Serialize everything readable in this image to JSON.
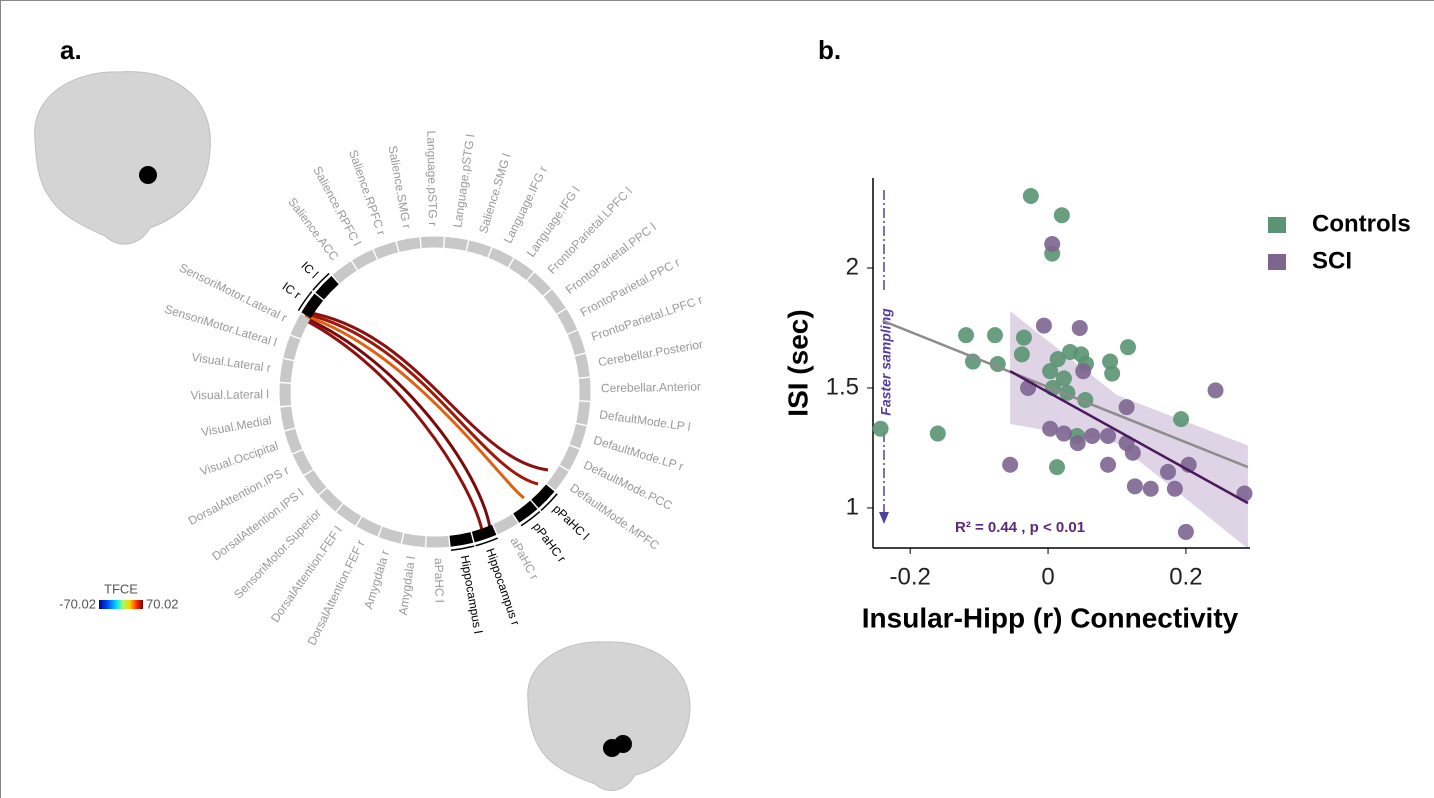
{
  "connectome": {
    "label": "a.",
    "nodes": [
      {
        "label": "Salience.SMG r",
        "highlight": false
      },
      {
        "label": "Language.pSTG r",
        "highlight": false
      },
      {
        "label": "Language.pSTG l",
        "highlight": false
      },
      {
        "label": "Salience.SMG l",
        "highlight": false
      },
      {
        "label": "Language.IFG r",
        "highlight": false
      },
      {
        "label": "Language.IFG l",
        "highlight": false
      },
      {
        "label": "FrontoParietal.LPFC l",
        "highlight": false
      },
      {
        "label": "FrontoParietal.PPC l",
        "highlight": false
      },
      {
        "label": "FrontoParietal.PPC r",
        "highlight": false
      },
      {
        "label": "FrontoParietal.LPFC r",
        "highlight": false
      },
      {
        "label": "Cerebellar.Posterior",
        "highlight": false
      },
      {
        "label": "Cerebellar.Anterior",
        "highlight": false
      },
      {
        "label": "DefaultMode.LP l",
        "highlight": false
      },
      {
        "label": "DefaultMode.LP r",
        "highlight": false
      },
      {
        "label": "DefaultMode.PCC",
        "highlight": false
      },
      {
        "label": "DefaultMode.MPFC",
        "highlight": false
      },
      {
        "label": "pPaHC l",
        "highlight": true
      },
      {
        "label": "pPaHC r",
        "highlight": true
      },
      {
        "label": "aPaHC r",
        "highlight": false
      },
      {
        "label": "Hippocampus r",
        "highlight": true
      },
      {
        "label": "Hippocampus l",
        "highlight": true
      },
      {
        "label": "aPaHC l",
        "highlight": false
      },
      {
        "label": "Amygdala l",
        "highlight": false
      },
      {
        "label": "Amygdala r",
        "highlight": false
      },
      {
        "label": "DorsalAttention.FEF r",
        "highlight": false
      },
      {
        "label": "DorsalAttention.FEF l",
        "highlight": false
      },
      {
        "label": "SensoriMotor.Superior",
        "highlight": false
      },
      {
        "label": "DorsalAttention.IPS l",
        "highlight": false
      },
      {
        "label": "DorsalAttention.IPS r",
        "highlight": false
      },
      {
        "label": "Visual.Occipital",
        "highlight": false
      },
      {
        "label": "Visual.Medial",
        "highlight": false
      },
      {
        "label": "Visual.Lateral l",
        "highlight": false
      },
      {
        "label": "Visual.Lateral r",
        "highlight": false
      },
      {
        "label": "SensoriMotor.Lateral l",
        "highlight": false
      },
      {
        "label": "SensoriMotor.Lateral r",
        "highlight": false
      },
      {
        "label": "IC r",
        "highlight": true
      },
      {
        "label": "IC l",
        "highlight": true
      },
      {
        "label": "Salience.ACC",
        "highlight": false
      },
      {
        "label": "Salience.RPFC l",
        "highlight": false
      },
      {
        "label": "Salience.RPFC r",
        "highlight": false
      }
    ],
    "colorbar": {
      "title": "TFCE",
      "min": -70.02,
      "max": 70.02
    }
  },
  "chart_data": {
    "type": "scatter",
    "panel_label": "b.",
    "x_label": "Insular-Hipp (r) Connectivity",
    "y_label": "ISI (sec)",
    "xlim": [
      -0.254,
      0.293
    ],
    "ylim": [
      0.833,
      2.375
    ],
    "xticks": [
      -0.2,
      0,
      0.2
    ],
    "yticks": [
      1,
      1.5,
      2
    ],
    "series": [
      {
        "name": "Controls",
        "color": "#5a9472",
        "x": [
          -0.025,
          0.02,
          0.006,
          -0.243,
          -0.16,
          -0.119,
          -0.109,
          -0.077,
          -0.073,
          -0.035,
          -0.038,
          0.003,
          0.014,
          0.032,
          0.048,
          0.023,
          0.028,
          0.055,
          0.054,
          0.09,
          0.093,
          0.116,
          0.007,
          0.042,
          0.013,
          0.193
        ],
        "y": [
          2.3,
          2.22,
          2.06,
          1.33,
          1.31,
          1.72,
          1.61,
          1.72,
          1.6,
          1.71,
          1.64,
          1.57,
          1.62,
          1.65,
          1.64,
          1.54,
          1.48,
          1.6,
          1.45,
          1.61,
          1.56,
          1.67,
          1.5,
          1.3,
          1.17,
          1.37
        ]
      },
      {
        "name": "SCI",
        "color": "#7d6590",
        "x": [
          0.006,
          -0.006,
          0.046,
          -0.029,
          -0.055,
          0.003,
          0.023,
          0.043,
          0.064,
          0.051,
          0.087,
          0.087,
          0.114,
          0.114,
          0.123,
          0.126,
          0.149,
          0.174,
          0.184,
          0.204,
          0.2,
          0.243,
          0.285
        ],
        "y": [
          2.1,
          1.76,
          1.75,
          1.5,
          1.18,
          1.33,
          1.31,
          1.27,
          1.3,
          1.57,
          1.3,
          1.18,
          1.42,
          1.27,
          1.23,
          1.09,
          1.08,
          1.15,
          1.08,
          1.18,
          0.9,
          1.49,
          1.06
        ]
      }
    ],
    "fits": [
      {
        "color": "#8c8c8c",
        "x": [
          -0.24,
          0.29
        ],
        "y": [
          1.78,
          1.17
        ]
      },
      {
        "color": "#4b1a5c",
        "x": [
          -0.055,
          0.29
        ],
        "y": [
          1.57,
          1.02
        ]
      }
    ],
    "band": {
      "color": "#d6c9df",
      "x": [
        -0.055,
        0.1,
        0.29
      ],
      "upper": [
        1.82,
        1.47,
        1.26
      ],
      "lower": [
        1.35,
        1.27,
        0.83
      ]
    },
    "annotation": "R² = 0.44 , p < 0.01",
    "arrow_label": "Faster sampling"
  }
}
